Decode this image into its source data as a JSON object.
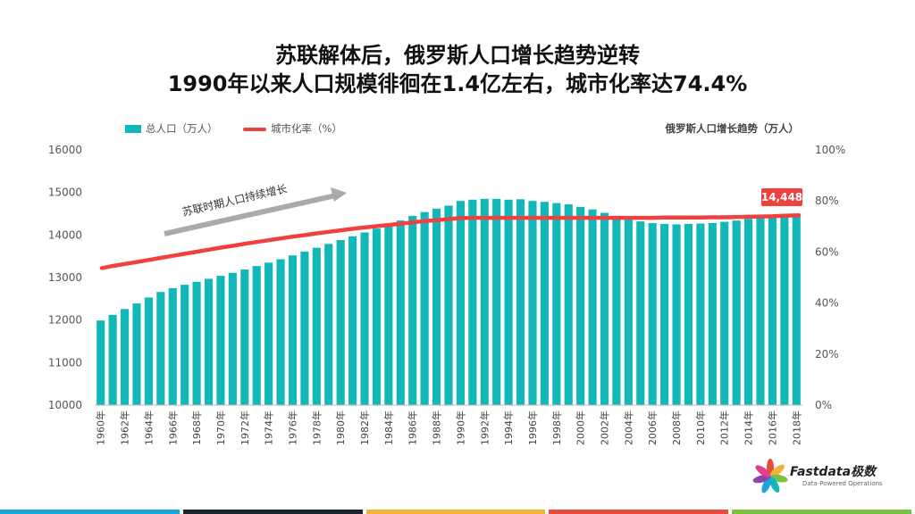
{
  "title_line1": "苏联解体后，俄罗斯人口增长趋势逆转",
  "title_line2": "1990年以来人口规模徘徊在1.4亿左右，城市化率达74.4%",
  "right_title": "俄罗斯人口增长趋势（万人）",
  "brand": {
    "name": "Fastdata极数",
    "tagline": "Data-Powered Operations"
  },
  "chart_data": {
    "type": "bar",
    "legend_position": "top-left",
    "bar_color": "#12b8b9",
    "line_color": "#ee4140",
    "footer_colors": [
      "#1aa7d8",
      "#1e2330",
      "#f0b43c",
      "#e84c3d",
      "#7cc142"
    ],
    "x": [
      "1960年",
      "1961年",
      "1962年",
      "1963年",
      "1964年",
      "1965年",
      "1966年",
      "1967年",
      "1968年",
      "1969年",
      "1970年",
      "1971年",
      "1972年",
      "1973年",
      "1974年",
      "1975年",
      "1976年",
      "1977年",
      "1978年",
      "1979年",
      "1980年",
      "1981年",
      "1982年",
      "1983年",
      "1984年",
      "1985年",
      "1986年",
      "1987年",
      "1988年",
      "1989年",
      "1990年",
      "1991年",
      "1992年",
      "1993年",
      "1994年",
      "1995年",
      "1996年",
      "1997年",
      "1998年",
      "1999年",
      "2000年",
      "2001年",
      "2002年",
      "2003年",
      "2004年",
      "2005年",
      "2006年",
      "2007年",
      "2008年",
      "2009年",
      "2010年",
      "2011年",
      "2012年",
      "2013年",
      "2014年",
      "2015年",
      "2016年",
      "2017年",
      "2018年"
    ],
    "x_tick_labels": [
      "1960年",
      "1962年",
      "1964年",
      "1966年",
      "1968年",
      "1970年",
      "1972年",
      "1974年",
      "1976年",
      "1978年",
      "1980年",
      "1982年",
      "1984年",
      "1986年",
      "1988年",
      "1990年",
      "1992年",
      "1994年",
      "1996年",
      "1998年",
      "2000年",
      "2002年",
      "2004年",
      "2006年",
      "2008年",
      "2010年",
      "2012年",
      "2014年",
      "2016年",
      "2018年"
    ],
    "series": [
      {
        "name": "总人口（万人）",
        "type": "bar",
        "axis": "left",
        "values": [
          11990,
          12120,
          12260,
          12390,
          12530,
          12660,
          12750,
          12830,
          12900,
          12970,
          13040,
          13110,
          13190,
          13270,
          13350,
          13430,
          13520,
          13610,
          13700,
          13790,
          13880,
          13970,
          14060,
          14150,
          14240,
          14340,
          14450,
          14540,
          14620,
          14690,
          14800,
          14830,
          14850,
          14850,
          14830,
          14840,
          14800,
          14780,
          14750,
          14720,
          14660,
          14600,
          14520,
          14450,
          14380,
          14320,
          14280,
          14260,
          14250,
          14260,
          14270,
          14280,
          14310,
          14340,
          14380,
          14400,
          14420,
          14440,
          14448
        ]
      },
      {
        "name": "城市化率（%）",
        "type": "line",
        "axis": "right",
        "values": [
          53.7,
          54.5,
          55.3,
          56.1,
          56.9,
          57.7,
          58.5,
          59.3,
          60.1,
          60.9,
          61.7,
          62.4,
          63.2,
          63.9,
          64.6,
          65.3,
          66.0,
          66.6,
          67.3,
          67.9,
          68.5,
          69.1,
          69.6,
          70.1,
          70.6,
          71.1,
          71.6,
          72.1,
          72.5,
          72.9,
          73.3,
          73.4,
          73.4,
          73.4,
          73.4,
          73.4,
          73.4,
          73.4,
          73.4,
          73.4,
          73.4,
          73.4,
          73.4,
          73.4,
          73.4,
          73.4,
          73.4,
          73.5,
          73.5,
          73.5,
          73.5,
          73.6,
          73.6,
          73.7,
          73.8,
          73.9,
          74.0,
          74.2,
          74.4
        ]
      }
    ],
    "y_left": {
      "min": 10000,
      "max": 16000,
      "ticks": [
        "10000",
        "11000",
        "12000",
        "13000",
        "14000",
        "15000",
        "16000"
      ]
    },
    "y_right": {
      "min": 0,
      "max": 100,
      "ticks": [
        "0%",
        "20%",
        "40%",
        "60%",
        "80%",
        "100%"
      ]
    },
    "annotations": {
      "arrow_text": "苏联时期人口持续增长",
      "last_value_label": "14,448"
    }
  }
}
